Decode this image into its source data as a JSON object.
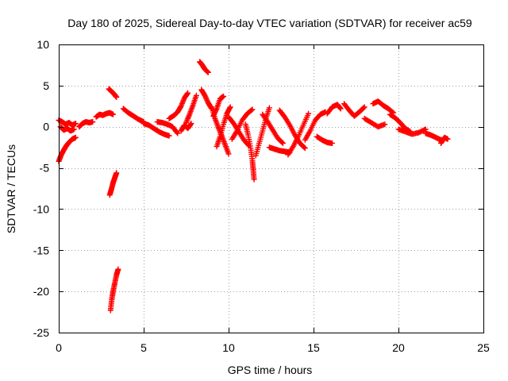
{
  "chart_data": {
    "type": "scatter",
    "title": "Day 180 of 2025, Sidereal Day-to-day VTEC variation (SDTVAR) for receiver ac59",
    "xlabel": "GPS time / hours",
    "ylabel": "SDTVAR / TECUs",
    "xlim": [
      0,
      25
    ],
    "ylim": [
      -25,
      10
    ],
    "xticks": [
      0,
      5,
      10,
      15,
      20,
      25
    ],
    "yticks": [
      -25,
      -20,
      -15,
      -10,
      -5,
      0,
      5,
      10
    ],
    "grid": true,
    "marker": "+",
    "color": "#ff0000",
    "series": [
      {
        "name": "SDTVAR",
        "segments": [
          [
            [
              0.0,
              -4.2
            ],
            [
              0.15,
              -3.4
            ],
            [
              0.3,
              -2.8
            ],
            [
              0.45,
              -2.3
            ],
            [
              0.6,
              -1.9
            ],
            [
              0.8,
              -1.5
            ],
            [
              1.0,
              -1.3
            ]
          ],
          [
            [
              0.0,
              0.8
            ],
            [
              0.2,
              0.6
            ],
            [
              0.4,
              0.3
            ],
            [
              0.6,
              0.5
            ],
            [
              0.8,
              0.2
            ],
            [
              1.0,
              0.4
            ]
          ],
          [
            [
              0.1,
              0.0
            ],
            [
              0.3,
              -0.4
            ],
            [
              0.5,
              -0.2
            ],
            [
              0.7,
              -0.5
            ],
            [
              0.9,
              -0.3
            ]
          ],
          [
            [
              1.2,
              0.0
            ],
            [
              1.4,
              0.4
            ],
            [
              1.6,
              0.6
            ],
            [
              1.8,
              0.5
            ],
            [
              2.0,
              0.6
            ]
          ],
          [
            [
              2.2,
              1.2
            ],
            [
              2.4,
              1.5
            ],
            [
              2.6,
              1.4
            ],
            [
              2.8,
              1.6
            ],
            [
              3.0,
              1.7
            ],
            [
              3.2,
              1.5
            ]
          ],
          [
            [
              2.95,
              4.6
            ],
            [
              3.1,
              4.3
            ],
            [
              3.25,
              4.0
            ],
            [
              3.4,
              3.6
            ]
          ],
          [
            [
              3.0,
              -8.3
            ],
            [
              3.1,
              -7.6
            ],
            [
              3.2,
              -6.8
            ],
            [
              3.3,
              -6.2
            ],
            [
              3.4,
              -5.6
            ]
          ],
          [
            [
              3.05,
              -22.3
            ],
            [
              3.12,
              -21.0
            ],
            [
              3.2,
              -20.0
            ],
            [
              3.3,
              -19.0
            ],
            [
              3.4,
              -18.0
            ],
            [
              3.5,
              -17.3
            ]
          ],
          [
            [
              3.8,
              2.2
            ],
            [
              4.1,
              1.7
            ],
            [
              4.4,
              1.3
            ],
            [
              4.7,
              0.9
            ],
            [
              5.0,
              0.6
            ]
          ],
          [
            [
              5.0,
              0.4
            ],
            [
              5.3,
              0.2
            ],
            [
              5.6,
              -0.2
            ],
            [
              5.9,
              -0.6
            ],
            [
              6.2,
              -0.9
            ],
            [
              6.5,
              -1.1
            ]
          ],
          [
            [
              5.8,
              0.6
            ],
            [
              6.1,
              0.5
            ],
            [
              6.4,
              0.3
            ],
            [
              6.7,
              0.0
            ],
            [
              7.0,
              -0.8
            ]
          ],
          [
            [
              6.5,
              1.0
            ],
            [
              6.8,
              1.4
            ],
            [
              7.0,
              1.8
            ],
            [
              7.2,
              2.5
            ],
            [
              7.4,
              3.5
            ],
            [
              7.6,
              4.1
            ]
          ],
          [
            [
              7.5,
              0.5
            ],
            [
              7.7,
              1.5
            ],
            [
              7.9,
              2.6
            ],
            [
              8.1,
              3.8
            ]
          ],
          [
            [
              7.2,
              -0.5
            ],
            [
              7.4,
              0.2
            ],
            [
              7.6,
              -0.2
            ],
            [
              7.8,
              0.4
            ]
          ],
          [
            [
              8.3,
              7.9
            ],
            [
              8.45,
              7.5
            ],
            [
              8.6,
              7.0
            ],
            [
              8.8,
              6.6
            ]
          ],
          [
            [
              8.4,
              4.5
            ],
            [
              8.6,
              3.8
            ],
            [
              8.8,
              2.9
            ],
            [
              9.0,
              2.2
            ]
          ],
          [
            [
              9.1,
              1.3
            ],
            [
              9.3,
              2.2
            ],
            [
              9.5,
              3.4
            ],
            [
              9.7,
              3.7
            ]
          ],
          [
            [
              9.0,
              2.4
            ],
            [
              9.2,
              1.0
            ],
            [
              9.4,
              -0.1
            ],
            [
              9.6,
              -1.1
            ],
            [
              9.8,
              -2.2
            ],
            [
              10.0,
              -3.3
            ]
          ],
          [
            [
              9.3,
              -2.4
            ],
            [
              9.5,
              -1.2
            ],
            [
              9.7,
              0.3
            ],
            [
              9.9,
              1.6
            ],
            [
              10.1,
              2.4
            ]
          ],
          [
            [
              10.0,
              1.2
            ],
            [
              10.3,
              0.4
            ],
            [
              10.6,
              -0.6
            ],
            [
              10.9,
              -1.6
            ],
            [
              11.2,
              -2.3
            ]
          ],
          [
            [
              10.2,
              -1.5
            ],
            [
              10.5,
              -0.5
            ],
            [
              10.8,
              0.8
            ],
            [
              11.1,
              1.6
            ],
            [
              11.4,
              2.1
            ]
          ],
          [
            [
              11.0,
              0.3
            ],
            [
              11.15,
              -1.0
            ],
            [
              11.3,
              -2.6
            ],
            [
              11.4,
              -4.1
            ],
            [
              11.45,
              -5.2
            ],
            [
              11.5,
              -6.4
            ]
          ],
          [
            [
              11.6,
              -3.5
            ],
            [
              11.8,
              -2.0
            ],
            [
              12.0,
              -0.5
            ],
            [
              12.2,
              1.0
            ],
            [
              12.4,
              2.3
            ]
          ],
          [
            [
              12.0,
              1.5
            ],
            [
              12.3,
              0.6
            ],
            [
              12.6,
              -0.4
            ],
            [
              12.9,
              -1.4
            ],
            [
              13.2,
              -2.0
            ]
          ],
          [
            [
              12.4,
              -2.5
            ],
            [
              12.7,
              -2.7
            ],
            [
              13.0,
              -2.9
            ],
            [
              13.3,
              -3.0
            ],
            [
              13.6,
              -3.1
            ]
          ],
          [
            [
              13.0,
              2.0
            ],
            [
              13.3,
              1.2
            ],
            [
              13.6,
              0.2
            ],
            [
              13.9,
              -1.0
            ],
            [
              14.2,
              -2.0
            ],
            [
              14.5,
              -2.6
            ]
          ],
          [
            [
              13.5,
              -3.4
            ],
            [
              13.8,
              -2.4
            ],
            [
              14.1,
              -1.2
            ],
            [
              14.4,
              0.2
            ],
            [
              14.7,
              1.6
            ]
          ],
          [
            [
              14.5,
              -1.6
            ],
            [
              14.8,
              -0.5
            ],
            [
              15.1,
              0.8
            ],
            [
              15.4,
              1.5
            ],
            [
              15.7,
              1.8
            ]
          ],
          [
            [
              15.2,
              -1.2
            ],
            [
              15.5,
              -1.6
            ],
            [
              15.8,
              -1.9
            ],
            [
              16.1,
              -2.0
            ]
          ],
          [
            [
              15.8,
              1.6
            ],
            [
              16.1,
              2.4
            ],
            [
              16.4,
              2.7
            ],
            [
              16.6,
              2.2
            ]
          ],
          [
            [
              16.8,
              2.8
            ],
            [
              17.1,
              2.0
            ],
            [
              17.4,
              1.3
            ],
            [
              17.7,
              1.8
            ],
            [
              18.0,
              2.4
            ]
          ],
          [
            [
              18.0,
              1.0
            ],
            [
              18.4,
              0.5
            ],
            [
              18.8,
              0.0
            ],
            [
              19.2,
              0.3
            ]
          ],
          [
            [
              18.5,
              2.8
            ],
            [
              18.8,
              3.1
            ],
            [
              19.1,
              2.6
            ],
            [
              19.4,
              2.2
            ],
            [
              19.7,
              1.7
            ]
          ],
          [
            [
              19.5,
              1.5
            ],
            [
              19.8,
              1.1
            ],
            [
              20.1,
              0.5
            ],
            [
              20.4,
              -0.2
            ],
            [
              20.7,
              -0.6
            ]
          ],
          [
            [
              20.0,
              -0.3
            ],
            [
              20.4,
              -0.6
            ],
            [
              20.8,
              -0.9
            ],
            [
              21.2,
              -0.7
            ],
            [
              21.6,
              -0.3
            ]
          ],
          [
            [
              21.6,
              -0.8
            ],
            [
              21.9,
              -1.0
            ],
            [
              22.2,
              -1.3
            ],
            [
              22.5,
              -1.6
            ]
          ],
          [
            [
              22.5,
              -2.0
            ],
            [
              22.7,
              -1.3
            ],
            [
              22.9,
              -1.5
            ]
          ]
        ]
      }
    ]
  }
}
